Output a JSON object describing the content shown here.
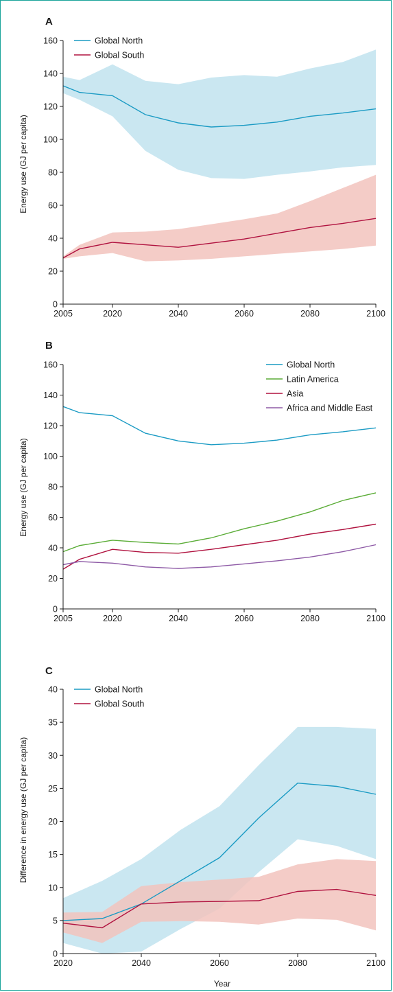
{
  "colors": {
    "global_north": "#1b9bc4",
    "global_north_band": "#c1e3ee",
    "global_south": "#b0123f",
    "global_south_band": "#f2c3bd",
    "latin_america": "#5aac36",
    "asia": "#b0123f",
    "africa_middle_east": "#8e5aa6"
  },
  "chart_data": [
    {
      "panel": "A",
      "type": "line",
      "ylabel": "Energy use (GJ per capita)",
      "xlabel": "",
      "xlim": [
        2005,
        2100
      ],
      "ylim": [
        0,
        160
      ],
      "xticks": [
        2005,
        2020,
        2040,
        2060,
        2080,
        2100
      ],
      "yticks": [
        0,
        20,
        40,
        60,
        80,
        100,
        120,
        140,
        160
      ],
      "legend_position": "top-left",
      "series": [
        {
          "name": "Global North",
          "color_key": "global_north",
          "band_color_key": "global_north_band",
          "x": [
            2005,
            2010,
            2020,
            2030,
            2040,
            2050,
            2060,
            2070,
            2080,
            2090,
            2100
          ],
          "values": [
            132.5,
            128.5,
            126.5,
            115,
            110,
            107.5,
            108.5,
            110.5,
            114,
            116,
            118.5
          ],
          "upper": [
            138,
            136,
            145.5,
            135.5,
            133.5,
            137.5,
            139,
            138,
            143,
            147,
            154.5
          ],
          "lower": [
            128,
            124,
            114,
            93,
            81.5,
            76.5,
            76,
            78.5,
            80.5,
            83,
            84.5
          ]
        },
        {
          "name": "Global South",
          "color_key": "global_south",
          "band_color_key": "global_south_band",
          "x": [
            2005,
            2010,
            2020,
            2030,
            2040,
            2050,
            2060,
            2070,
            2080,
            2090,
            2100
          ],
          "values": [
            28,
            33.5,
            37.5,
            36,
            34.5,
            37,
            39.5,
            43,
            46.5,
            49,
            52
          ],
          "upper": [
            29,
            36,
            43.5,
            44,
            45.5,
            48.5,
            51.5,
            55,
            62.5,
            70.5,
            78.5
          ],
          "lower": [
            27.5,
            29,
            31,
            26,
            26.5,
            27.5,
            29,
            30.5,
            32,
            33.5,
            35.5
          ]
        }
      ]
    },
    {
      "panel": "B",
      "type": "line",
      "ylabel": "Energy use (GJ per capita)",
      "xlabel": "",
      "xlim": [
        2005,
        2100
      ],
      "ylim": [
        0,
        160
      ],
      "xticks": [
        2005,
        2020,
        2040,
        2060,
        2080,
        2100
      ],
      "yticks": [
        0,
        20,
        40,
        60,
        80,
        100,
        120,
        140,
        160
      ],
      "legend_position": "top-right",
      "series": [
        {
          "name": "Global North",
          "color_key": "global_north",
          "x": [
            2005,
            2010,
            2020,
            2030,
            2040,
            2050,
            2060,
            2070,
            2080,
            2090,
            2100
          ],
          "values": [
            132.5,
            128.5,
            126.5,
            115,
            110,
            107.5,
            108.5,
            110.5,
            114,
            116,
            118.5
          ]
        },
        {
          "name": "Latin America",
          "color_key": "latin_america",
          "x": [
            2005,
            2010,
            2020,
            2030,
            2040,
            2050,
            2060,
            2070,
            2080,
            2090,
            2100
          ],
          "values": [
            37.5,
            41.5,
            45,
            43.5,
            42.5,
            46.5,
            52.5,
            57.5,
            63.5,
            71,
            76
          ]
        },
        {
          "name": "Asia",
          "color_key": "asia",
          "x": [
            2005,
            2010,
            2020,
            2030,
            2040,
            2050,
            2060,
            2070,
            2080,
            2090,
            2100
          ],
          "values": [
            26,
            32.5,
            39,
            37,
            36.5,
            39,
            42,
            45,
            49,
            52,
            55.5
          ]
        },
        {
          "name": "Africa and Middle East",
          "color_key": "africa_middle_east",
          "x": [
            2005,
            2010,
            2020,
            2030,
            2040,
            2050,
            2060,
            2070,
            2080,
            2090,
            2100
          ],
          "values": [
            29,
            31,
            30,
            27.5,
            26.5,
            27.5,
            29.5,
            31.5,
            34,
            37.5,
            42
          ]
        }
      ]
    },
    {
      "panel": "C",
      "type": "line",
      "ylabel": "Difference in energy use (GJ per capita)",
      "xlabel": "Year",
      "xlim": [
        2020,
        2100
      ],
      "ylim": [
        0,
        40
      ],
      "xticks": [
        2020,
        2040,
        2060,
        2080,
        2100
      ],
      "yticks": [
        0,
        5,
        10,
        15,
        20,
        25,
        30,
        35,
        40
      ],
      "legend_position": "top-left",
      "series": [
        {
          "name": "Global North",
          "color_key": "global_north",
          "band_color_key": "global_north_band",
          "x": [
            2020,
            2030,
            2040,
            2050,
            2060,
            2070,
            2080,
            2090,
            2100
          ],
          "values": [
            5,
            5.3,
            7.5,
            11,
            14.5,
            20.5,
            25.8,
            25.3,
            24.1
          ],
          "upper": [
            8.4,
            11,
            14.3,
            18.7,
            22.3,
            28.5,
            34.3,
            34.3,
            34
          ],
          "lower": [
            1.6,
            -1.5,
            0.3,
            3.7,
            6.8,
            12.3,
            17.3,
            16.3,
            14.3
          ]
        },
        {
          "name": "Global South",
          "color_key": "global_south",
          "band_color_key": "global_south_band",
          "x": [
            2020,
            2030,
            2040,
            2050,
            2060,
            2070,
            2080,
            2090,
            2100
          ],
          "values": [
            4.6,
            3.9,
            7.5,
            7.8,
            7.9,
            8,
            9.4,
            9.7,
            8.8
          ],
          "upper": [
            6.2,
            6.3,
            10.2,
            10.8,
            11.2,
            11.6,
            13.5,
            14.3,
            14
          ],
          "lower": [
            3.2,
            1.6,
            4.8,
            4.9,
            4.8,
            4.4,
            5.3,
            5.1,
            3.5
          ]
        }
      ]
    }
  ]
}
